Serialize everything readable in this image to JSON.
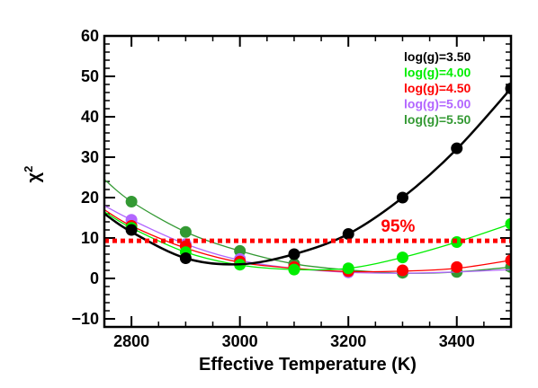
{
  "chart_data": {
    "type": "line",
    "xlabel": "Effective Temperature (K)",
    "ylabel_symbol": "χ",
    "ylabel_superscript": "2",
    "xlim": [
      2750,
      3500
    ],
    "ylim": [
      -12,
      60
    ],
    "x_ticks": [
      2800,
      3000,
      3200,
      3400
    ],
    "y_ticks": [
      -10,
      0,
      10,
      20,
      30,
      40,
      50,
      60
    ],
    "x_tick_labels": [
      "2800",
      "3000",
      "3200",
      "3400"
    ],
    "y_tick_labels": [
      "−10",
      "0",
      "10",
      "20",
      "30",
      "40",
      "50",
      "60"
    ],
    "series": [
      {
        "name": "log(g)=3.50",
        "color": "#000000",
        "curve": {
          "x": [
            2750,
            2800,
            2900,
            3000,
            3100,
            3200,
            3300,
            3400,
            3500
          ],
          "y": [
            16,
            11.5,
            5,
            3.5,
            6,
            11,
            20,
            32,
            47
          ]
        },
        "points": {
          "x": [
            2800,
            2900,
            3100,
            3200,
            3300,
            3400,
            3500
          ],
          "y": [
            12,
            5,
            6,
            11,
            20,
            32.2,
            47
          ]
        }
      },
      {
        "name": "log(g)=4.00",
        "color": "#00ee00",
        "curve": {
          "x": [
            2750,
            2800,
            2900,
            3000,
            3100,
            3200,
            3300,
            3400,
            3500
          ],
          "y": [
            16.5,
            12.5,
            6.5,
            3.3,
            2.2,
            2.5,
            5.2,
            9,
            13.5
          ]
        },
        "points": {
          "x": [
            2800,
            2900,
            3000,
            3100,
            3200,
            3300,
            3400,
            3500
          ],
          "y": [
            12.5,
            6.5,
            3.4,
            2.2,
            2.5,
            5.2,
            9,
            13.5
          ]
        }
      },
      {
        "name": "log(g)=4.50",
        "color": "#ff0000",
        "curve": {
          "x": [
            2750,
            2800,
            2900,
            3000,
            3100,
            3200,
            3300,
            3400,
            3500
          ],
          "y": [
            17,
            13,
            7.5,
            4,
            2.5,
            1.7,
            1.8,
            2.5,
            4.5
          ]
        },
        "points": {
          "x": [
            2800,
            2900,
            3000,
            3100,
            3200,
            3300,
            3400,
            3500
          ],
          "y": [
            13,
            8,
            4.2,
            2.8,
            1.8,
            2,
            2.8,
            4.5
          ]
        }
      },
      {
        "name": "log(g)=5.00",
        "color": "#b266ff",
        "curve": {
          "x": [
            2750,
            2800,
            2900,
            3000,
            3100,
            3200,
            3300,
            3400,
            3500
          ],
          "y": [
            18,
            14.5,
            8.5,
            4.5,
            2.5,
            1.5,
            1.3,
            1.6,
            2.2
          ]
        },
        "points": {
          "x": [
            2800,
            2900,
            3000,
            3100,
            3200
          ],
          "y": [
            14.5,
            8.5,
            4.8,
            2.8,
            1.5
          ]
        }
      },
      {
        "name": "log(g)=5.50",
        "color": "#339933",
        "curve": {
          "x": [
            2750,
            2800,
            2900,
            3000,
            3100,
            3200,
            3300,
            3400,
            3500
          ],
          "y": [
            24.5,
            19,
            11.5,
            6.8,
            3.6,
            2.1,
            1.3,
            1.6,
            2.8
          ]
        },
        "points": {
          "x": [
            2800,
            2900,
            3000,
            3100,
            3200,
            3300,
            3400,
            3500
          ],
          "y": [
            19,
            11.5,
            6.8,
            3.6,
            2.1,
            1.4,
            1.6,
            2.8
          ]
        }
      }
    ],
    "reference_line": {
      "y": 9.3,
      "label": "95%",
      "color": "#ff0000",
      "style": "dotted"
    }
  }
}
